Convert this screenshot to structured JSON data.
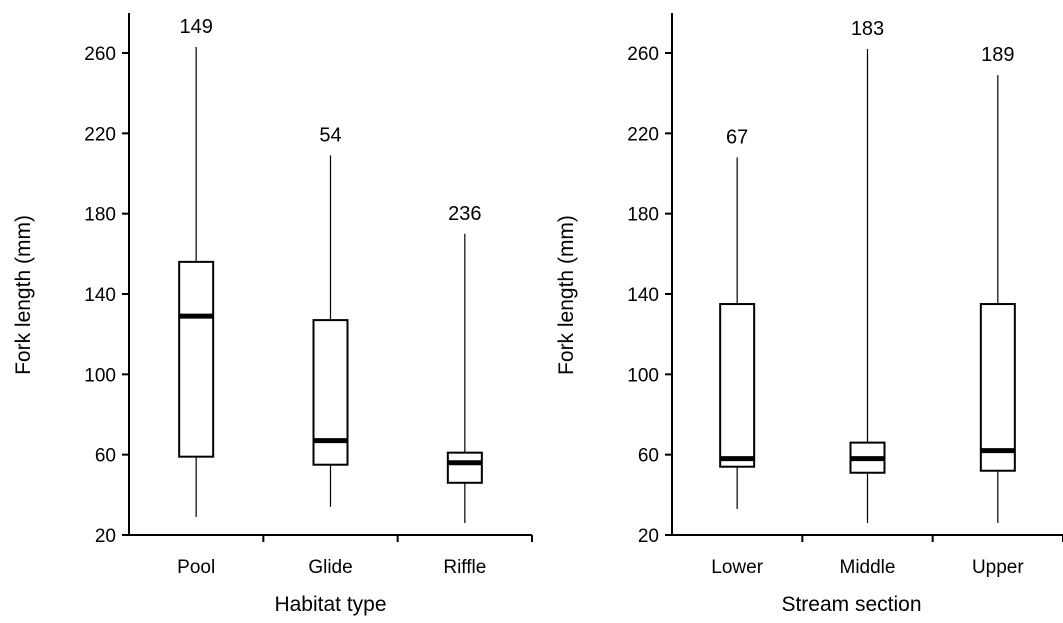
{
  "chart_data": [
    {
      "type": "boxplot",
      "xlabel": "Habitat type",
      "ylabel": "Fork length (mm)",
      "ylim": [
        20,
        280
      ],
      "yticks": [
        20,
        60,
        100,
        140,
        180,
        220,
        260
      ],
      "categories": [
        "Pool",
        "Glide",
        "Riffle"
      ],
      "groups": [
        {
          "name": "Pool",
          "n": "149",
          "min": 29,
          "q1": 59,
          "median": 129,
          "q3": 156,
          "max": 263
        },
        {
          "name": "Glide",
          "n": "54",
          "min": 34,
          "q1": 55,
          "median": 67,
          "q3": 127,
          "max": 209
        },
        {
          "name": "Riffle",
          "n": "236",
          "min": 26,
          "q1": 46,
          "median": 56,
          "q3": 61,
          "max": 170
        }
      ]
    },
    {
      "type": "boxplot",
      "xlabel": "Stream section",
      "ylabel": "Fork length (mm)",
      "ylim": [
        20,
        280
      ],
      "yticks": [
        20,
        60,
        100,
        140,
        180,
        220,
        260
      ],
      "categories": [
        "Lower",
        "Middle",
        "Upper"
      ],
      "groups": [
        {
          "name": "Lower",
          "n": "67",
          "min": 33,
          "q1": 54,
          "median": 58,
          "q3": 135,
          "max": 208
        },
        {
          "name": "Middle",
          "n": "183",
          "min": 26,
          "q1": 51,
          "median": 58,
          "q3": 66,
          "max": 262
        },
        {
          "name": "Upper",
          "n": "189",
          "min": 26,
          "q1": 52,
          "median": 62,
          "q3": 135,
          "max": 249
        }
      ]
    }
  ]
}
